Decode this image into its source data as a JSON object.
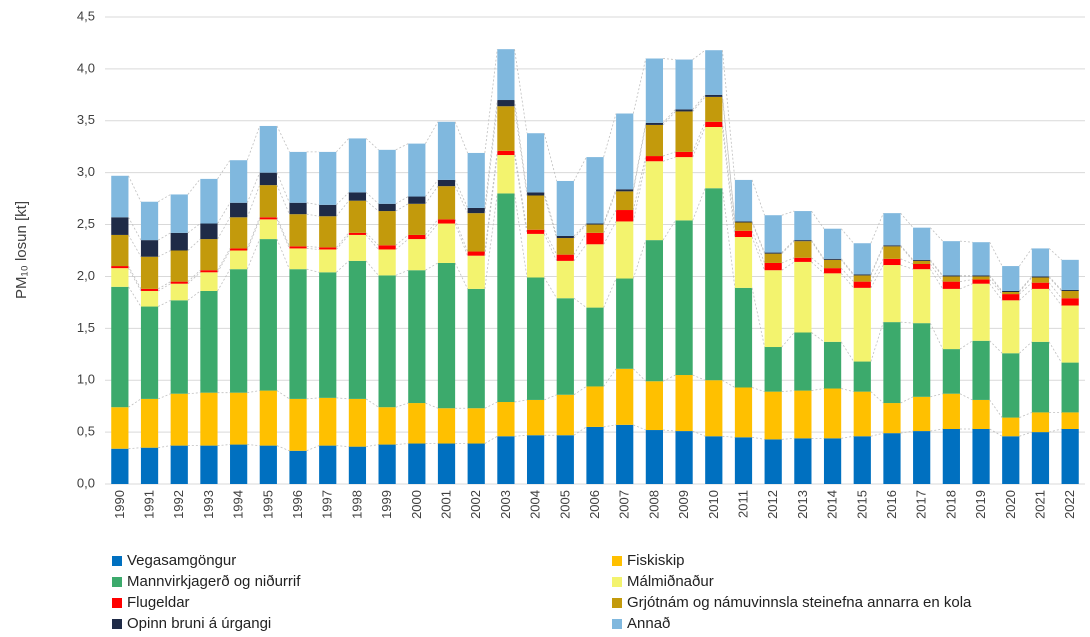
{
  "chart_data": {
    "type": "stacked_bar",
    "ylabel": "PM₁₀ losun [kt]",
    "categories": [
      "1990",
      "1991",
      "1992",
      "1993",
      "1994",
      "1995",
      "1996",
      "1997",
      "1998",
      "1999",
      "2000",
      "2001",
      "2002",
      "2003",
      "2004",
      "2005",
      "2006",
      "2007",
      "2008",
      "2009",
      "2010",
      "2011",
      "2012",
      "2013",
      "2014",
      "2015",
      "2016",
      "2017",
      "2018",
      "2019",
      "2020",
      "2021",
      "2022"
    ],
    "series": [
      {
        "name": "Vegasamgöngur",
        "color": "#0070c0",
        "values": [
          0.34,
          0.35,
          0.37,
          0.37,
          0.38,
          0.37,
          0.32,
          0.37,
          0.36,
          0.38,
          0.39,
          0.39,
          0.39,
          0.46,
          0.47,
          0.47,
          0.55,
          0.57,
          0.52,
          0.51,
          0.46,
          0.45,
          0.43,
          0.44,
          0.44,
          0.46,
          0.49,
          0.51,
          0.53,
          0.53,
          0.46,
          0.5,
          0.53
        ]
      },
      {
        "name": "Fiskiskip",
        "color": "#ffc000",
        "values": [
          0.4,
          0.47,
          0.5,
          0.51,
          0.5,
          0.53,
          0.5,
          0.46,
          0.46,
          0.36,
          0.39,
          0.34,
          0.34,
          0.33,
          0.34,
          0.39,
          0.39,
          0.54,
          0.47,
          0.54,
          0.54,
          0.48,
          0.46,
          0.46,
          0.48,
          0.43,
          0.29,
          0.33,
          0.34,
          0.28,
          0.18,
          0.19,
          0.16
        ]
      },
      {
        "name": "Mannvirkjagerð og niðurrif",
        "color": "#3caa6c",
        "values": [
          1.16,
          0.89,
          0.9,
          0.98,
          1.19,
          1.46,
          1.25,
          1.21,
          1.33,
          1.27,
          1.28,
          1.4,
          1.15,
          2.01,
          1.18,
          0.93,
          0.76,
          0.87,
          1.36,
          1.49,
          1.85,
          0.96,
          0.43,
          0.56,
          0.45,
          0.29,
          0.78,
          0.71,
          0.43,
          0.57,
          0.62,
          0.68,
          0.48
        ]
      },
      {
        "name": "Málmiðnaður",
        "color": "#f3f36e",
        "values": [
          0.18,
          0.15,
          0.16,
          0.18,
          0.18,
          0.19,
          0.2,
          0.22,
          0.25,
          0.25,
          0.3,
          0.38,
          0.32,
          0.37,
          0.42,
          0.36,
          0.61,
          0.55,
          0.76,
          0.61,
          0.59,
          0.49,
          0.74,
          0.68,
          0.66,
          0.71,
          0.55,
          0.52,
          0.58,
          0.55,
          0.51,
          0.51,
          0.55
        ]
      },
      {
        "name": "Flugeldar",
        "color": "#ff0000",
        "values": [
          0.02,
          0.02,
          0.02,
          0.02,
          0.02,
          0.02,
          0.02,
          0.02,
          0.02,
          0.04,
          0.04,
          0.04,
          0.04,
          0.04,
          0.04,
          0.06,
          0.11,
          0.11,
          0.05,
          0.05,
          0.05,
          0.06,
          0.07,
          0.04,
          0.05,
          0.06,
          0.06,
          0.05,
          0.07,
          0.04,
          0.06,
          0.06,
          0.07
        ]
      },
      {
        "name": "Grjótnám og námuvinnsla steinefna annarra en kola",
        "color": "#c39a0c",
        "values": [
          0.3,
          0.31,
          0.3,
          0.3,
          0.3,
          0.31,
          0.31,
          0.3,
          0.31,
          0.33,
          0.3,
          0.32,
          0.37,
          0.43,
          0.33,
          0.16,
          0.08,
          0.18,
          0.3,
          0.39,
          0.24,
          0.08,
          0.09,
          0.16,
          0.08,
          0.06,
          0.12,
          0.03,
          0.05,
          0.03,
          0.02,
          0.05,
          0.07
        ]
      },
      {
        "name": "Opinn bruni á úrgangi",
        "color": "#1f2b47",
        "values": [
          0.17,
          0.16,
          0.17,
          0.15,
          0.14,
          0.12,
          0.11,
          0.11,
          0.08,
          0.07,
          0.07,
          0.06,
          0.05,
          0.06,
          0.03,
          0.02,
          0.01,
          0.02,
          0.02,
          0.02,
          0.02,
          0.01,
          0.01,
          0.01,
          0.01,
          0.01,
          0.01,
          0.01,
          0.01,
          0.01,
          0.01,
          0.01,
          0.01
        ]
      },
      {
        "name": "Annað",
        "color": "#80b8de",
        "values": [
          0.4,
          0.37,
          0.37,
          0.43,
          0.41,
          0.45,
          0.49,
          0.51,
          0.52,
          0.52,
          0.51,
          0.56,
          0.53,
          0.49,
          0.57,
          0.53,
          0.64,
          0.73,
          0.62,
          0.48,
          0.43,
          0.4,
          0.36,
          0.28,
          0.29,
          0.3,
          0.31,
          0.31,
          0.33,
          0.32,
          0.24,
          0.27,
          0.29
        ]
      }
    ],
    "ylim": [
      0,
      4.5
    ],
    "yticks": [
      {
        "value": 0,
        "label": "0,0"
      },
      {
        "value": 0.5,
        "label": "0,5"
      },
      {
        "value": 1,
        "label": "1,0"
      },
      {
        "value": 1.5,
        "label": "1,5"
      },
      {
        "value": 2,
        "label": "2,0"
      },
      {
        "value": 2.5,
        "label": "2,5"
      },
      {
        "value": 3,
        "label": "3,0"
      },
      {
        "value": 3.5,
        "label": "3,5"
      },
      {
        "value": 4,
        "label": "4,0"
      },
      {
        "value": 4.5,
        "label": "4,5"
      }
    ],
    "grid": true,
    "legend": "bottom"
  }
}
